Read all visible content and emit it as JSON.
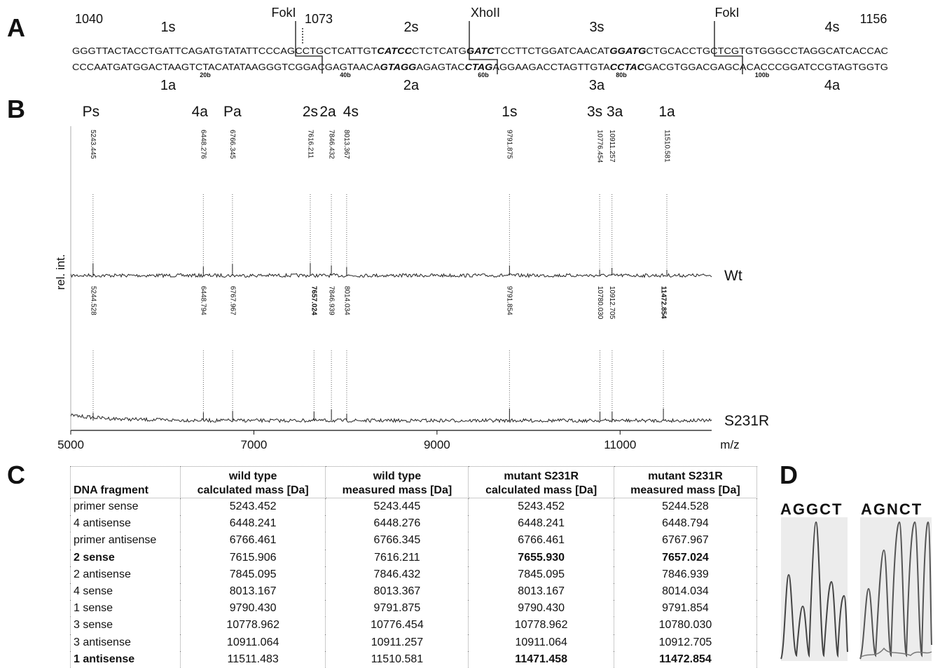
{
  "panel_a": {
    "letter": "A",
    "positions": [
      "1040",
      "1073",
      "1156"
    ],
    "enzymes": [
      "FokI",
      "XhoII",
      "FokI"
    ],
    "sense_fragments": [
      "1s",
      "2s",
      "3s",
      "4s"
    ],
    "antisense_fragments": [
      "1a",
      "2a",
      "3a",
      "4a"
    ],
    "top_strand": [
      "GGGTTACTACCTGATTCAGATGTATATTCCCAGCCTGCTCATTGT",
      "CATCC",
      "CTCTCATG",
      "GATC",
      "TCCTTCTGGATCAACAT",
      "GGATG",
      "CTGCACCTGCTCGTGTGGGCCTAGGCATCACCAC"
    ],
    "bottom_strand": [
      "CCCAATGATGGACTAAGTCTACATATAAGGGTCGGACGAGTAACA",
      "GTAGG",
      "AGAGTAC",
      "CTAG",
      "AGGAAGACCTAGTTGTA",
      "CCTAC",
      "GACGTGGACGAGCACACCCGGATCCGTAGTGGTG"
    ],
    "base_markers": [
      "20b",
      "40b",
      "60b",
      "80b",
      "100b"
    ]
  },
  "panel_b": {
    "letter": "B",
    "peak_names": [
      "Ps",
      "4a",
      "Pa",
      "2s",
      "2a",
      "4s",
      "1s",
      "3s",
      "3a",
      "1a"
    ],
    "ylabel": "rel. int.",
    "xlabel": "m/z",
    "xlim": [
      5000,
      12000
    ],
    "xticks": [
      5000,
      7000,
      9000,
      11000
    ],
    "traces": [
      {
        "name": "Wt",
        "peaks": [
          5243.445,
          6448.276,
          6766.345,
          7616.211,
          7846.432,
          8013.367,
          9791.875,
          10776.454,
          10911.257,
          11510.581
        ],
        "bold": []
      },
      {
        "name": "S231R",
        "peaks": [
          5244.528,
          6448.794,
          6767.967,
          7657.024,
          7846.939,
          8014.034,
          9791.854,
          {
            "value": 10780.03,
            "label": "10780.030"
          },
          10912.705,
          11472.854
        ],
        "bold": [
          3,
          9
        ]
      }
    ]
  },
  "panel_c": {
    "letter": "C",
    "table": {
      "header": [
        [
          "DNA fragment"
        ],
        [
          "wild type",
          "calculated mass [Da]"
        ],
        [
          "wild type",
          "measured mass [Da]"
        ],
        [
          "mutant S231R",
          "calculated mass [Da]"
        ],
        [
          "mutant S231R",
          "measured mass [Da]"
        ]
      ],
      "rows": [
        [
          "primer sense",
          "5243.452",
          "5243.445",
          "5243.452",
          "5244.528"
        ],
        [
          "4 antisense",
          "6448.241",
          "6448.276",
          "6448.241",
          "6448.794"
        ],
        [
          "primer antisense",
          "6766.461",
          "6766.345",
          "6766.461",
          "6767.967"
        ],
        [
          "2 sense",
          "7615.906",
          "7616.211",
          "7655.930",
          "7657.024"
        ],
        [
          "2 antisense",
          "7845.095",
          "7846.432",
          "7845.095",
          "7846.939"
        ],
        [
          "4 sense",
          "8013.167",
          "8013.367",
          "8013.167",
          "8014.034"
        ],
        [
          "1 sense",
          "9790.430",
          "9791.875",
          "9790.430",
          "9791.854"
        ],
        [
          "3 sense",
          "10778.962",
          "10776.454",
          "10778.962",
          "10780.030"
        ],
        [
          "3 antisense",
          "10911.064",
          "10911.257",
          "10911.064",
          "10912.705"
        ],
        [
          "1 antisense",
          "11511.483",
          "11510.581",
          "11471.458",
          "11472.854"
        ]
      ]
    }
  },
  "panel_d": {
    "letter": "D",
    "sequences": [
      "AGGCT",
      "AGNCT"
    ]
  }
}
